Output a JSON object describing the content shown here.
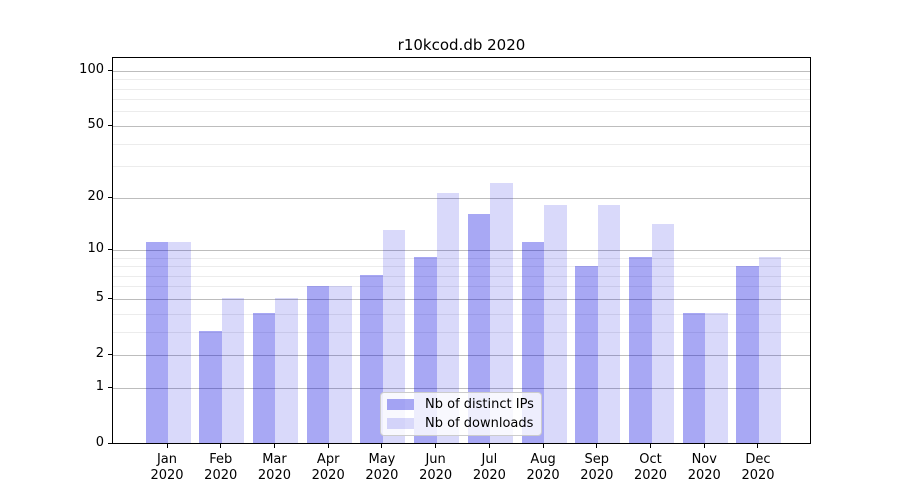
{
  "chart_data": {
    "type": "bar",
    "title": "r10kcod.db 2020",
    "categories": [
      "Jan",
      "Feb",
      "Mar",
      "Apr",
      "May",
      "Jun",
      "Jul",
      "Aug",
      "Sep",
      "Oct",
      "Nov",
      "Dec"
    ],
    "x_tick_second_line": "2020",
    "series": [
      {
        "key": "ips",
        "name": "Nb of distinct IPs",
        "color": "rgba(0,0,224,0.34)",
        "values": [
          11,
          3,
          4,
          6,
          7,
          9,
          16,
          11,
          8,
          9,
          4,
          8
        ]
      },
      {
        "key": "downloads",
        "name": "Nb of downloads",
        "color": "rgba(0,0,224,0.15)",
        "values": [
          11,
          5,
          5,
          6,
          13,
          21,
          24,
          18,
          18,
          14,
          4,
          9
        ]
      }
    ],
    "xlabel": "",
    "ylabel": "",
    "y_scale": "log10(1+y)",
    "ylim": [
      0,
      118
    ],
    "y_major_ticks": [
      0,
      1,
      2,
      5,
      10,
      20,
      50,
      100
    ],
    "y_minor_ticks": [
      3,
      4,
      6,
      7,
      8,
      9,
      30,
      40,
      60,
      70,
      80,
      90
    ],
    "grid": "on",
    "legend_position": "lower-center",
    "colors": {
      "major_grid": "#bdbdbd",
      "minor_grid": "#ececec",
      "axis": "#000000",
      "text": "#000000",
      "background": "#ffffff"
    }
  }
}
